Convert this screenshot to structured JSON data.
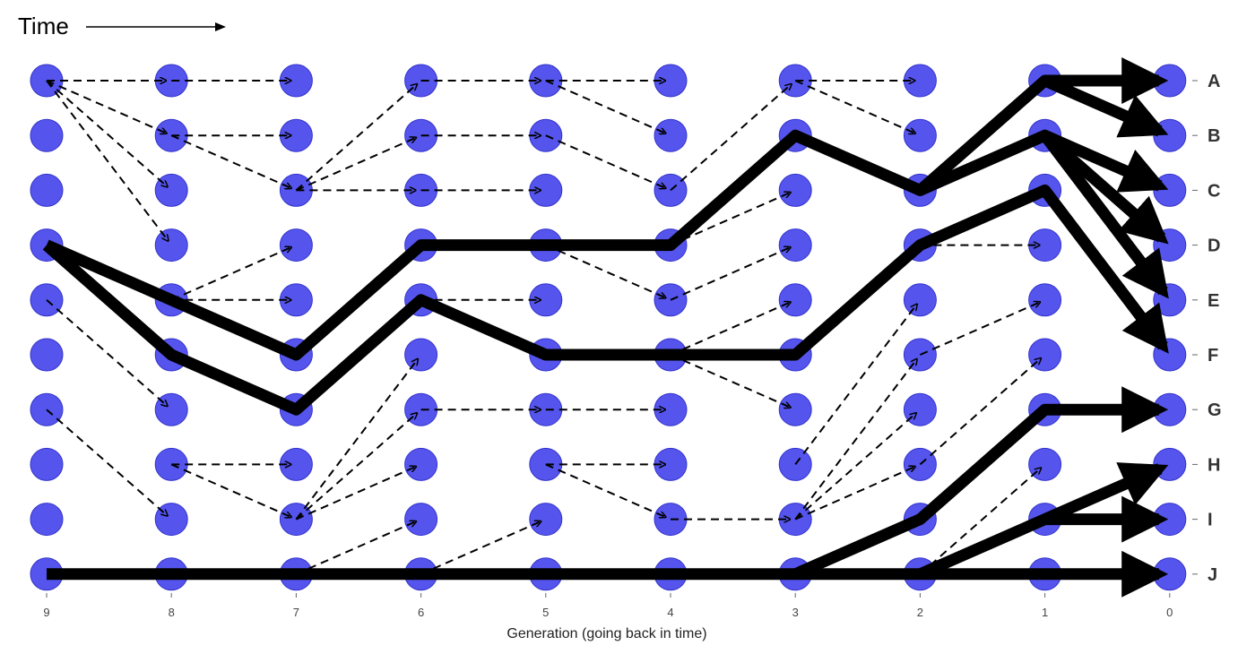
{
  "header": {
    "time_label": "Time"
  },
  "axis": {
    "x_title": "Generation (going back in time)",
    "generations": [
      "9",
      "8",
      "7",
      "6",
      "5",
      "4",
      "3",
      "2",
      "1",
      "0"
    ]
  },
  "row_labels": [
    "A",
    "B",
    "C",
    "D",
    "E",
    "F",
    "G",
    "H",
    "I",
    "J"
  ],
  "colors": {
    "node": "#5555ee",
    "node_stroke": "#3333cc",
    "edge": "#000000"
  },
  "dashed_edges": [
    [
      9,
      0,
      8,
      0
    ],
    [
      9,
      0,
      8,
      1
    ],
    [
      9,
      0,
      8,
      2
    ],
    [
      9,
      0,
      8,
      3
    ],
    [
      8,
      0,
      7,
      0
    ],
    [
      8,
      1,
      7,
      1
    ],
    [
      8,
      1,
      7,
      2
    ],
    [
      9,
      4,
      8,
      6
    ],
    [
      9,
      6,
      8,
      8
    ],
    [
      8,
      4,
      7,
      3
    ],
    [
      8,
      4,
      7,
      4
    ],
    [
      8,
      7,
      7,
      7
    ],
    [
      8,
      7,
      7,
      8
    ],
    [
      7,
      2,
      6,
      0
    ],
    [
      7,
      2,
      6,
      1
    ],
    [
      7,
      2,
      6,
      2
    ],
    [
      7,
      8,
      6,
      5
    ],
    [
      7,
      8,
      6,
      6
    ],
    [
      7,
      8,
      6,
      7
    ],
    [
      7,
      9,
      6,
      8
    ],
    [
      7,
      9,
      6,
      9
    ],
    [
      6,
      0,
      5,
      0
    ],
    [
      6,
      1,
      5,
      1
    ],
    [
      6,
      2,
      5,
      2
    ],
    [
      6,
      4,
      5,
      4
    ],
    [
      6,
      6,
      5,
      6
    ],
    [
      6,
      9,
      5,
      8
    ],
    [
      5,
      0,
      4,
      0
    ],
    [
      5,
      0,
      4,
      1
    ],
    [
      5,
      1,
      4,
      2
    ],
    [
      5,
      3,
      4,
      4
    ],
    [
      5,
      6,
      4,
      6
    ],
    [
      5,
      7,
      4,
      7
    ],
    [
      5,
      7,
      4,
      8
    ],
    [
      4,
      2,
      3,
      0
    ],
    [
      4,
      3,
      3,
      2
    ],
    [
      4,
      4,
      3,
      3
    ],
    [
      4,
      5,
      3,
      4
    ],
    [
      4,
      5,
      3,
      6
    ],
    [
      4,
      8,
      3,
      8
    ],
    [
      3,
      0,
      2,
      0
    ],
    [
      3,
      0,
      2,
      1
    ],
    [
      3,
      7,
      2,
      4
    ],
    [
      3,
      8,
      2,
      5
    ],
    [
      3,
      8,
      2,
      6
    ],
    [
      3,
      8,
      2,
      7
    ],
    [
      2,
      3,
      1,
      3
    ],
    [
      2,
      5,
      1,
      4
    ],
    [
      2,
      7,
      1,
      5
    ],
    [
      2,
      9,
      1,
      7
    ]
  ],
  "solid_paths": [
    [
      [
        9,
        9
      ],
      [
        8,
        9
      ],
      [
        7,
        9
      ],
      [
        6,
        9
      ],
      [
        5,
        9
      ],
      [
        4,
        9
      ],
      [
        3,
        9
      ],
      [
        2,
        9
      ],
      [
        1,
        9
      ],
      [
        0,
        9
      ]
    ],
    [
      [
        9,
        3
      ],
      [
        8,
        4
      ],
      [
        7,
        5
      ],
      [
        6,
        3
      ],
      [
        5,
        3
      ],
      [
        4,
        3
      ],
      [
        3,
        1
      ],
      [
        2,
        2
      ],
      [
        1,
        0
      ],
      [
        0,
        0
      ]
    ],
    [
      [
        1,
        0
      ],
      [
        0,
        1
      ]
    ],
    [
      [
        2,
        2
      ],
      [
        1,
        1
      ],
      [
        0,
        2
      ]
    ],
    [
      [
        1,
        1
      ],
      [
        0,
        3
      ]
    ],
    [
      [
        1,
        1
      ],
      [
        0,
        4
      ]
    ],
    [
      [
        9,
        3
      ],
      [
        8,
        5
      ],
      [
        7,
        6
      ],
      [
        6,
        4
      ],
      [
        5,
        5
      ],
      [
        4,
        5
      ],
      [
        3,
        5
      ],
      [
        2,
        3
      ],
      [
        1,
        2
      ],
      [
        0,
        5
      ]
    ],
    [
      [
        3,
        9
      ],
      [
        2,
        8
      ],
      [
        1,
        6
      ],
      [
        0,
        6
      ]
    ],
    [
      [
        2,
        9
      ],
      [
        1,
        8
      ],
      [
        0,
        7
      ]
    ],
    [
      [
        1,
        8
      ],
      [
        0,
        8
      ]
    ]
  ]
}
